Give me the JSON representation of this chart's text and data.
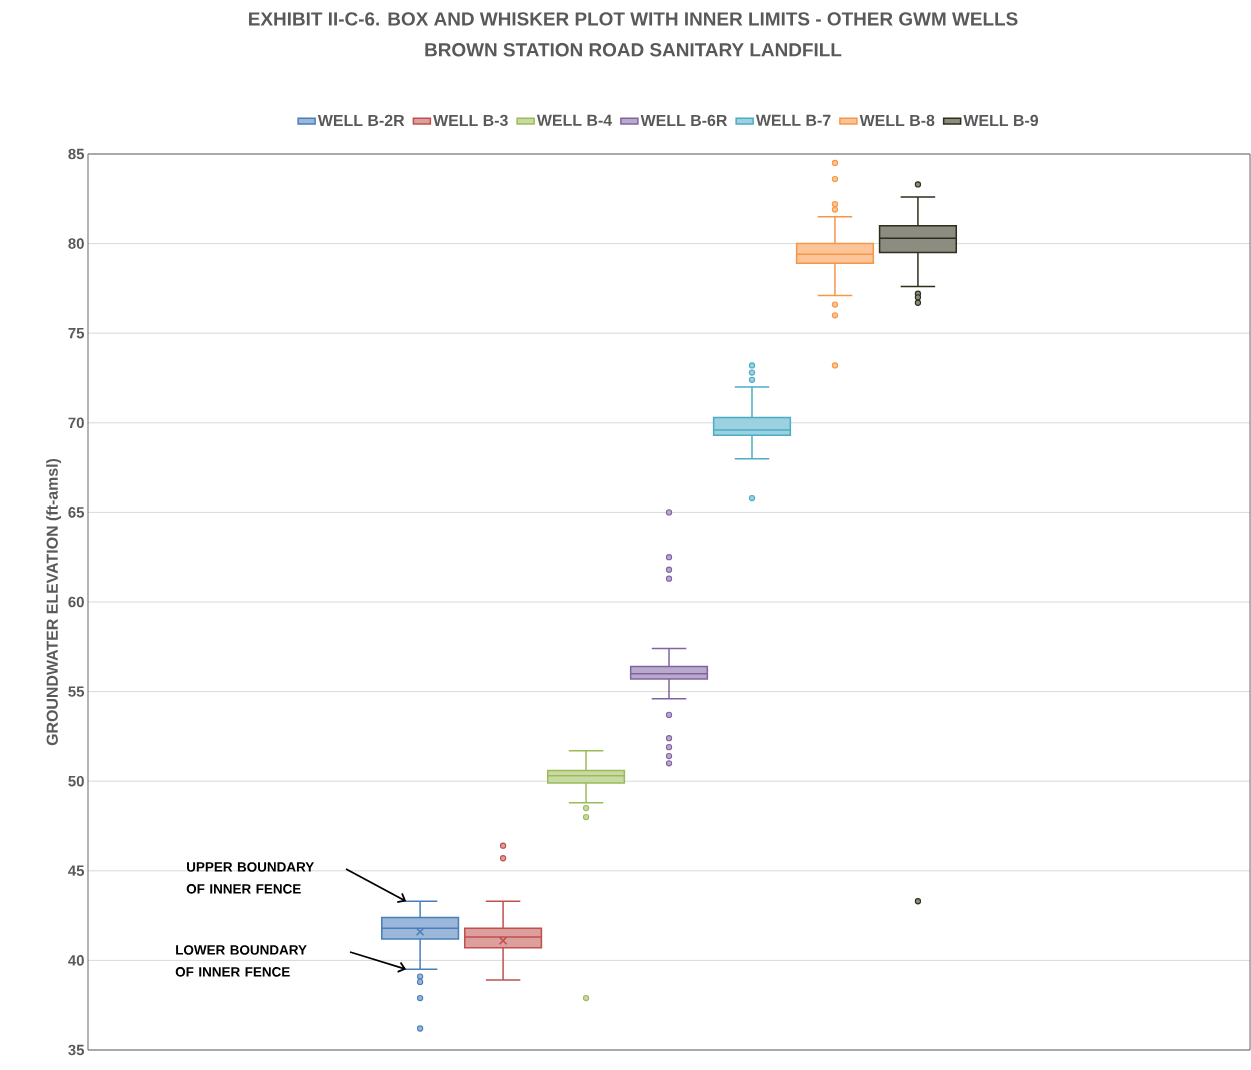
{
  "chart_data": {
    "type": "box",
    "title": "EXHIBIT II-C-6. BOX AND WHISKER PLOT WITH INNER LIMITS - OTHER GWM WELLS\nBROWN STATION ROAD SANITARY LANDFILL",
    "ylabel": "GROUNDWATER ELEVATION (ft-amsl)",
    "categories": [
      null
    ],
    "ylim": [
      35,
      85
    ],
    "yticks": [
      35,
      40,
      45,
      50,
      55,
      60,
      65,
      70,
      75,
      80,
      85
    ],
    "grid": "y",
    "legend": "top",
    "annotations": [
      "UPPER BOUNDARY OF INNER FENCE",
      "LOWER BOUNDARY OF INNER FENCE"
    ],
    "series": [
      {
        "name": "WELL B-2R",
        "color": "#4a7ebb",
        "boxes": [
          {
            "low": 39.5,
            "q1": 41.2,
            "median": 41.8,
            "q3": 42.4,
            "high": 43.3,
            "mean": 41.6,
            "outliers": [
              39.1,
              38.8,
              37.9,
              36.2
            ]
          }
        ]
      },
      {
        "name": "WELL B-3",
        "color": "#c0504d",
        "boxes": [
          {
            "low": 38.9,
            "q1": 40.7,
            "median": 41.3,
            "q3": 41.8,
            "high": 43.3,
            "mean": 41.1,
            "outliers": [
              46.4,
              45.7
            ]
          }
        ]
      },
      {
        "name": "WELL B-4",
        "color": "#9bbb59",
        "boxes": [
          {
            "low": 48.8,
            "q1": 49.9,
            "median": 50.3,
            "q3": 50.6,
            "high": 51.7,
            "outliers": [
              48.5,
              48.0,
              37.9
            ]
          }
        ]
      },
      {
        "name": "WELL B-6R",
        "color": "#8064a2",
        "boxes": [
          {
            "low": 54.6,
            "q1": 55.7,
            "median": 56.0,
            "q3": 56.4,
            "high": 57.4,
            "outliers": [
              65.0,
              62.5,
              61.8,
              61.3,
              53.7,
              52.4,
              51.9,
              51.4,
              51.0
            ]
          }
        ]
      },
      {
        "name": "WELL B-7",
        "color": "#4bacc6",
        "boxes": [
          {
            "low": 68.0,
            "q1": 69.3,
            "median": 69.6,
            "q3": 70.3,
            "high": 72.0,
            "outliers": [
              73.2,
              72.8,
              72.4,
              65.8
            ]
          }
        ]
      },
      {
        "name": "WELL B-8",
        "color": "#f79646",
        "boxes": [
          {
            "low": 77.1,
            "q1": 78.9,
            "median": 79.4,
            "q3": 80.0,
            "high": 81.5,
            "outliers": [
              84.5,
              83.6,
              82.2,
              81.9,
              76.6,
              76.0,
              73.2
            ]
          }
        ]
      },
      {
        "name": "WELL B-9",
        "color": "#2e2e1a",
        "boxes": [
          {
            "low": 77.6,
            "q1": 79.5,
            "median": 80.3,
            "q3": 81.0,
            "high": 82.6,
            "outliers": [
              83.3,
              77.2,
              77.0,
              76.7,
              43.3
            ]
          }
        ]
      }
    ]
  }
}
